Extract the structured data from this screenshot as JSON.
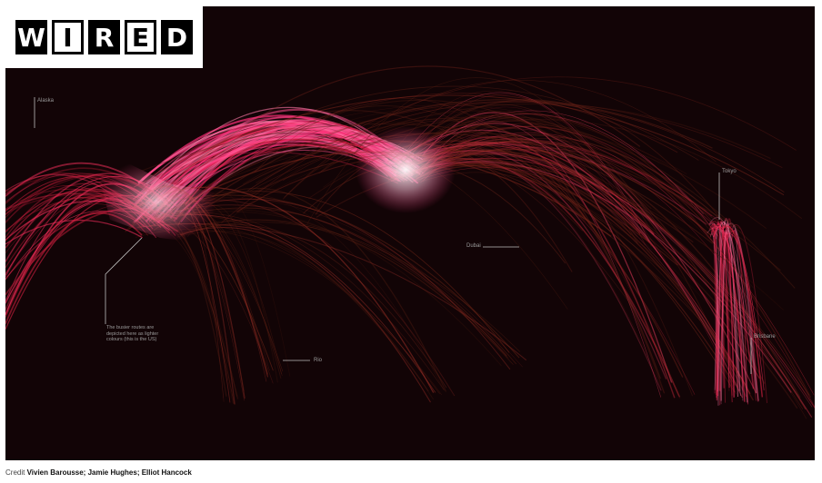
{
  "logo": {
    "letters": [
      "W",
      "I",
      "R",
      "E",
      "D"
    ]
  },
  "map": {
    "labels": {
      "alaska": "Alaska",
      "tokyo": "Tokyo",
      "dubai": "Dubai",
      "rio": "Rio",
      "brisbane": "Brisbane"
    },
    "note": "The busier routes are depicted here as lighter colours (this is the US)",
    "colors": {
      "background": "#120406",
      "busy": "#ff2f7a",
      "quiet": "#7a2a1a",
      "hub": "#ffe6ef"
    }
  },
  "credit": {
    "prefix": "Credit",
    "names": "Vivien Barousse; Jamie Hughes; Elliot Hancock"
  }
}
